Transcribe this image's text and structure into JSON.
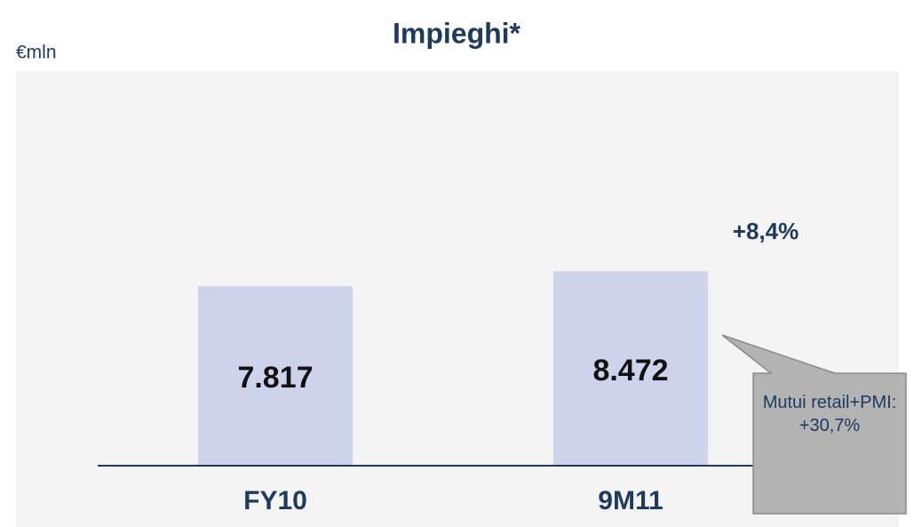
{
  "chart_data": {
    "type": "bar",
    "title": "Impieghi*",
    "unit": "€mln",
    "categories": [
      "FY10",
      "9M11"
    ],
    "values": [
      7817,
      8472
    ],
    "value_labels": [
      "7.817",
      "8.472"
    ],
    "color": "#cdd3eb",
    "ylim": [
      0,
      17000
    ],
    "annotations": [
      "+8,4%",
      "Mutui retail+PMI: +30,7%"
    ]
  }
}
